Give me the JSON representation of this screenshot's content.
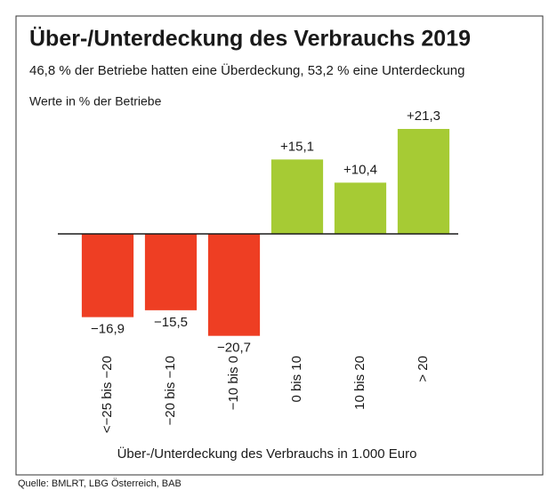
{
  "chart_data": {
    "type": "bar",
    "title": "Über-/Unterdeckung des Verbrauchs 2019",
    "subtitle": "46,8 % der Betriebe hatten eine Überdeckung, 53,2 % eine Unterdeckung",
    "annotation": "Werte in % der Betriebe",
    "x_label": "Über-/Unterdeckung des Verbrauchs in 1.000 Euro",
    "source": "Quelle: BMLRT, LBG Österreich, BAB",
    "categories": [
      "<−25 bis −20",
      "−20 bis −10",
      "−10 bis 0",
      "0 bis 10",
      "10 bis 20",
      "> 20"
    ],
    "values": [
      -16.9,
      -15.5,
      -20.7,
      15.1,
      10.4,
      21.3
    ],
    "value_labels": [
      "−16,9",
      "−15,5",
      "−20,7",
      "+15,1",
      "+10,4",
      "+21,3"
    ],
    "colors": [
      "#ee3e23",
      "#ee3e23",
      "#ee3e23",
      "#a6cb34",
      "#a6cb34",
      "#a6cb34"
    ],
    "ylim": [
      -25,
      25
    ]
  }
}
